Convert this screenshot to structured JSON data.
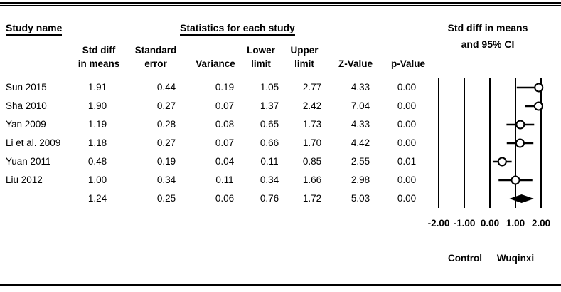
{
  "header": {
    "study_name_label": "Study name",
    "stats_label": "Statistics for each study",
    "plot_title_line1": "Std diff in means",
    "plot_title_line2": "and 95% CI"
  },
  "table": {
    "columns": [
      {
        "lines": [
          "Std diff",
          "in means"
        ]
      },
      {
        "lines": [
          "Standard",
          "error"
        ]
      },
      {
        "lines": [
          "Variance"
        ]
      },
      {
        "lines": [
          "Lower",
          "limit"
        ]
      },
      {
        "lines": [
          "Upper",
          "limit"
        ]
      },
      {
        "lines": [
          "Z-Value"
        ]
      },
      {
        "lines": [
          "p-Value"
        ]
      }
    ]
  },
  "chart_data": {
    "type": "forest",
    "effect_measure": "Std diff in means",
    "title": "Std diff in means and 95% CI",
    "studies": [
      {
        "name": "Sun 2015",
        "std_diff": "1.91",
        "standard_error": "0.44",
        "variance": "0.19",
        "lower_limit": "1.05",
        "upper_limit": "2.77",
        "z_value": "4.33",
        "p_value": "0.00"
      },
      {
        "name": "Sha 2010",
        "std_diff": "1.90",
        "standard_error": "0.27",
        "variance": "0.07",
        "lower_limit": "1.37",
        "upper_limit": "2.42",
        "z_value": "7.04",
        "p_value": "0.00"
      },
      {
        "name": "Yan 2009",
        "std_diff": "1.19",
        "standard_error": "0.28",
        "variance": "0.08",
        "lower_limit": "0.65",
        "upper_limit": "1.73",
        "z_value": "4.33",
        "p_value": "0.00"
      },
      {
        "name": "Li et al. 2009",
        "std_diff": "1.18",
        "standard_error": "0.27",
        "variance": "0.07",
        "lower_limit": "0.66",
        "upper_limit": "1.70",
        "z_value": "4.42",
        "p_value": "0.00"
      },
      {
        "name": "Yuan 2011",
        "std_diff": "0.48",
        "standard_error": "0.19",
        "variance": "0.04",
        "lower_limit": "0.11",
        "upper_limit": "0.85",
        "z_value": "2.55",
        "p_value": "0.01"
      },
      {
        "name": "Liu 2012",
        "std_diff": "1.00",
        "standard_error": "0.34",
        "variance": "0.11",
        "lower_limit": "0.34",
        "upper_limit": "1.66",
        "z_value": "2.98",
        "p_value": "0.00"
      }
    ],
    "overall": {
      "name": "",
      "std_diff": "1.24",
      "standard_error": "0.25",
      "variance": "0.06",
      "lower_limit": "0.76",
      "upper_limit": "1.72",
      "z_value": "5.03",
      "p_value": "0.00"
    },
    "axis": {
      "tick_labels": [
        "-2.00",
        "-1.00",
        "0.00",
        "1.00",
        "2.00"
      ],
      "tick_values": [
        -2,
        -1,
        0,
        1,
        2
      ],
      "range": [
        -2,
        2
      ]
    },
    "group_labels": {
      "left": "Control",
      "right": "Wuqinxi"
    }
  },
  "colors": {
    "ink": "#000000",
    "background": "#ffffff",
    "marker_fill": "#ffffff"
  }
}
